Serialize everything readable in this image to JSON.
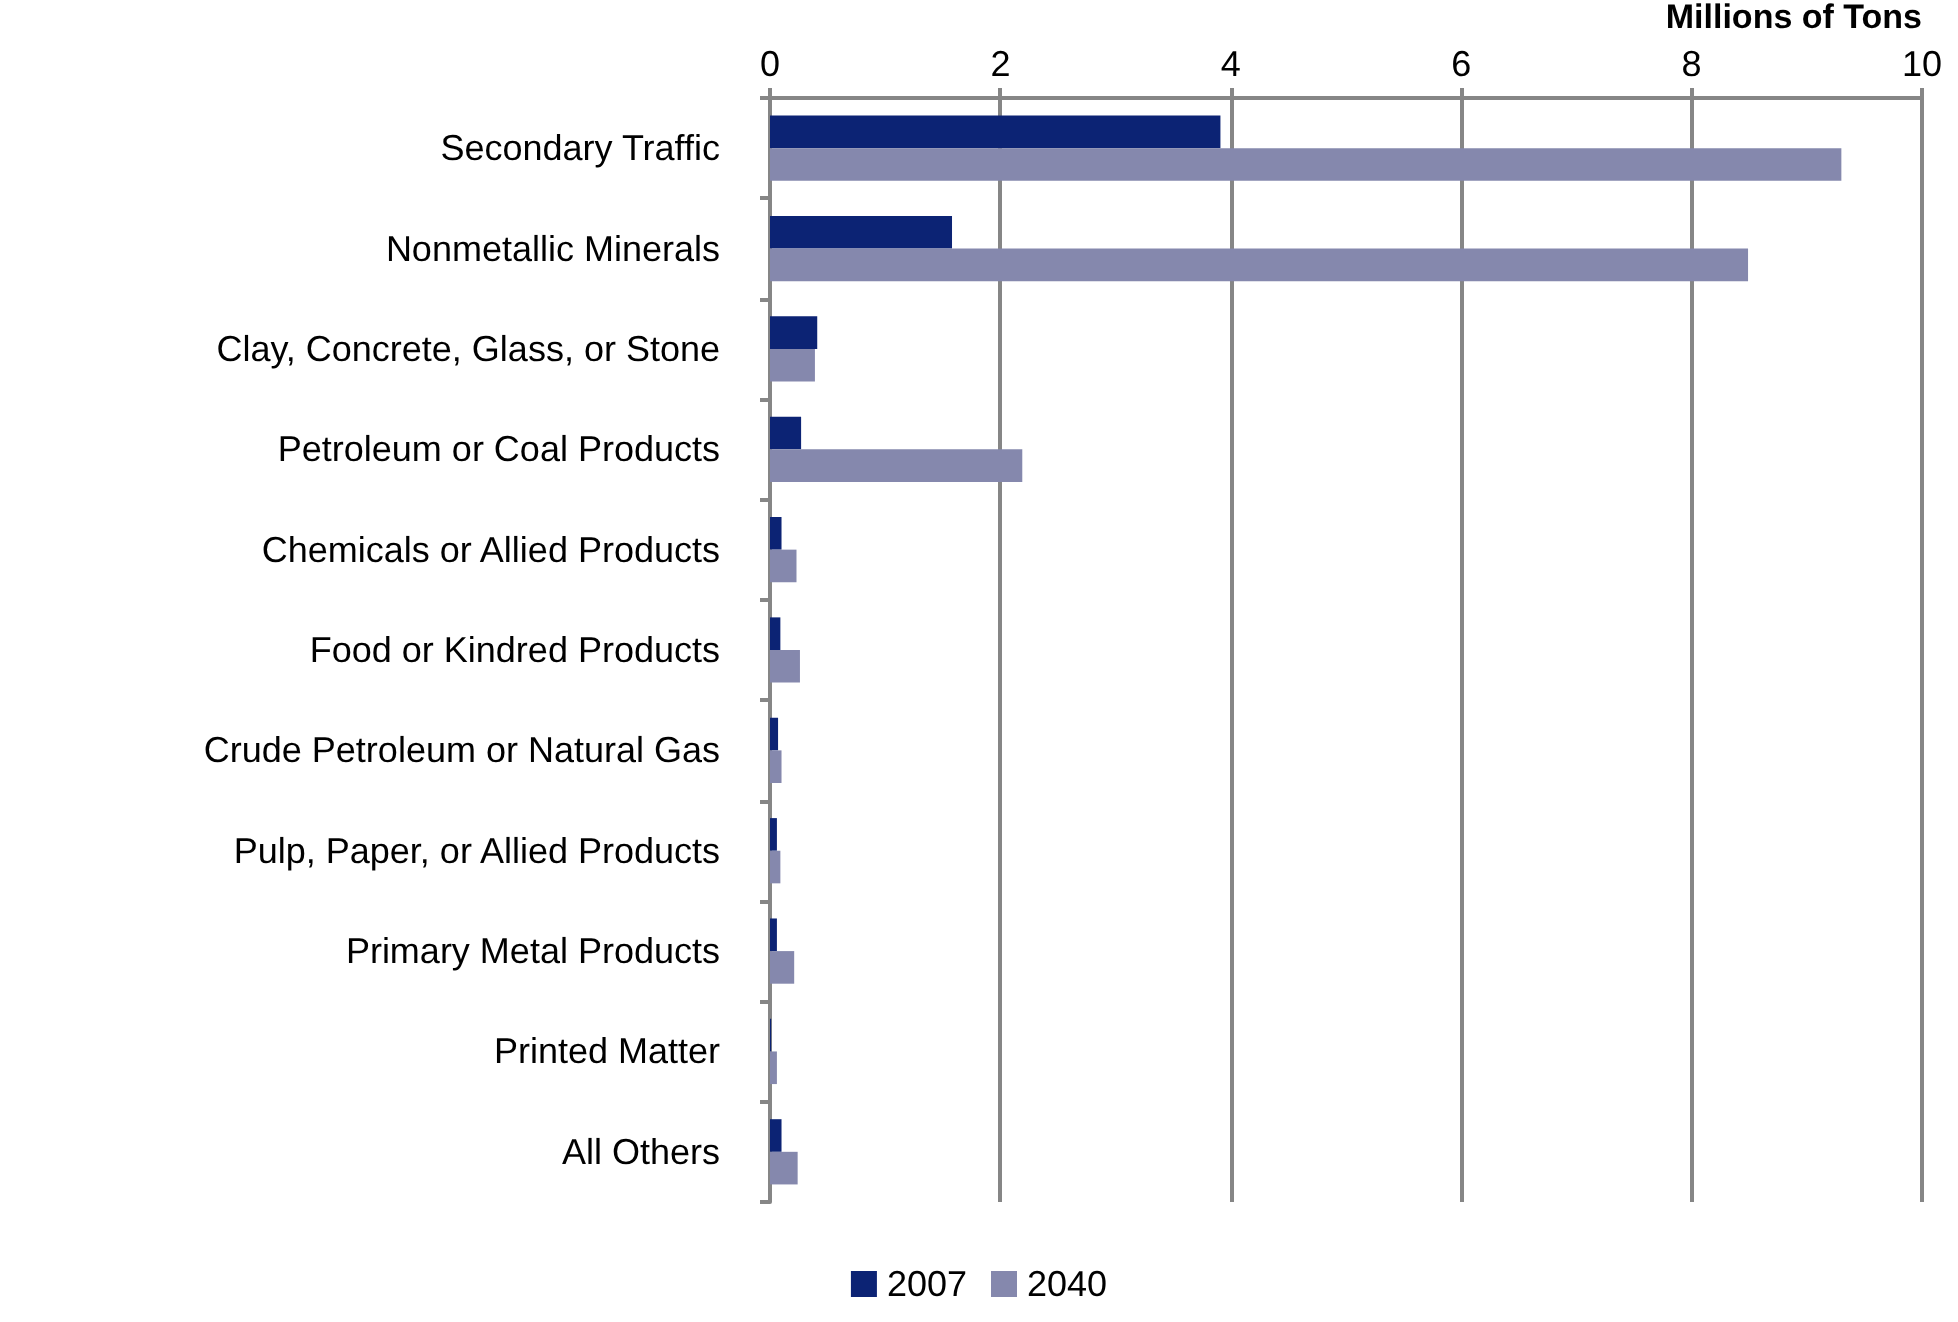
{
  "chart_data": {
    "type": "bar",
    "orientation": "horizontal",
    "xlabel": "Millions of Tons",
    "categories": [
      "Secondary Traffic",
      "Nonmetallic Minerals",
      "Clay, Concrete, Glass, or Stone",
      "Petroleum or Coal Products",
      "Chemicals or Allied Products",
      "Food or Kindred Products",
      "Crude Petroleum or Natural Gas",
      "Pulp, Paper, or Allied Products",
      "Primary Metal Products",
      "Printed Matter",
      "All Others"
    ],
    "series": [
      {
        "name": "2007",
        "color": "#0c2374",
        "values": [
          3.91,
          1.58,
          0.41,
          0.27,
          0.1,
          0.09,
          0.07,
          0.06,
          0.06,
          0.01,
          0.1
        ]
      },
      {
        "name": "2040",
        "color": "#8588ad",
        "values": [
          9.3,
          8.49,
          0.39,
          2.19,
          0.23,
          0.26,
          0.1,
          0.09,
          0.21,
          0.06,
          0.24
        ]
      }
    ],
    "xlim": [
      0,
      10
    ],
    "xticks": [
      0,
      2,
      4,
      6,
      8,
      10
    ],
    "grid": "x",
    "legend": "bottom"
  }
}
